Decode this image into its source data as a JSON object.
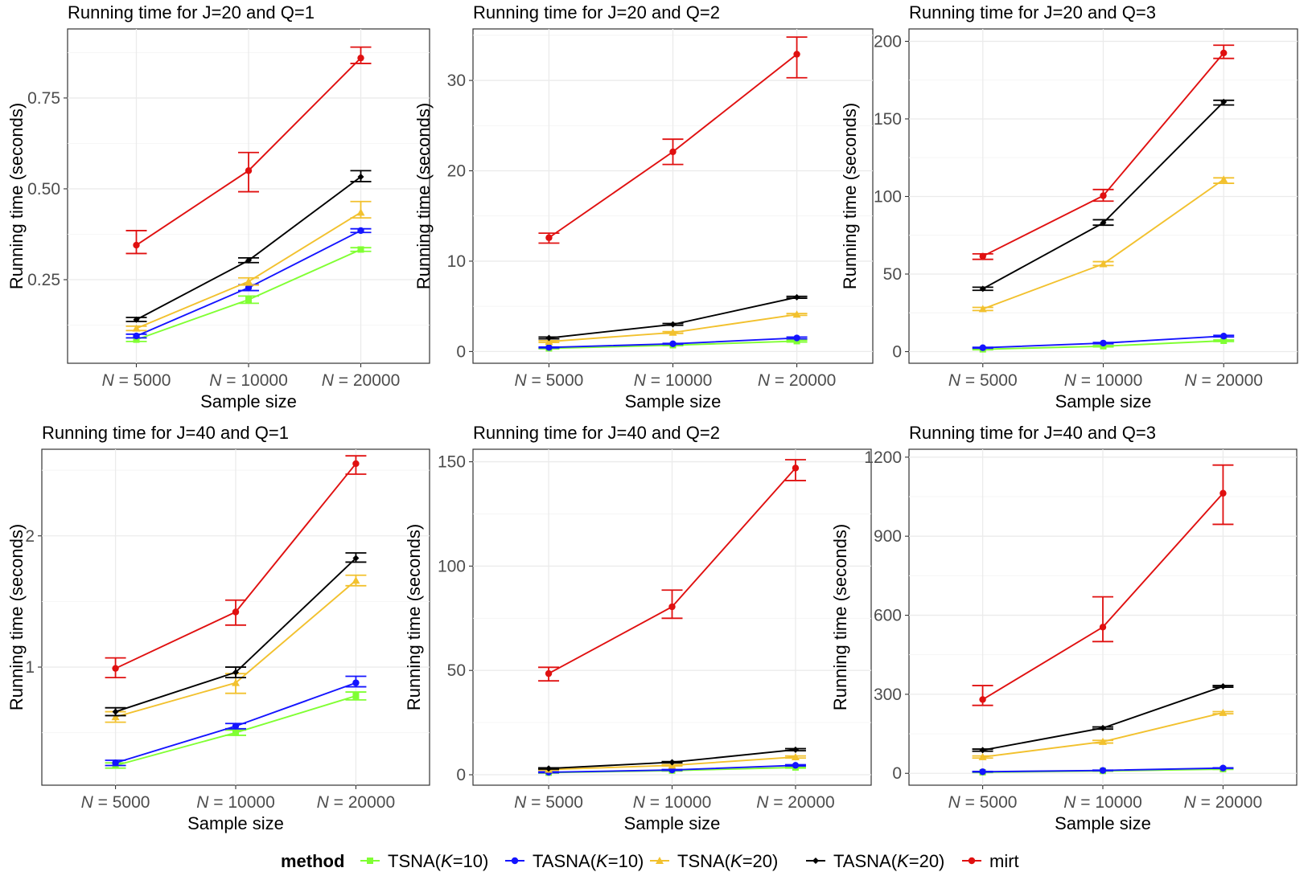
{
  "legend": {
    "title": "method",
    "items": [
      {
        "label": "TSNA(K=10)",
        "color": "#80ff33",
        "marker": "square"
      },
      {
        "label": "TASNA(K=10)",
        "color": "#1414ff",
        "marker": "circle"
      },
      {
        "label": "TSNA(K=20)",
        "color": "#f2c12e",
        "marker": "triangle"
      },
      {
        "label": "TASNA(K=20)",
        "color": "#000000",
        "marker": "diamond"
      },
      {
        "label": "mirt",
        "color": "#e01010",
        "marker": "circle"
      }
    ]
  },
  "chart_data": [
    {
      "type": "line",
      "title": "Running time for J=20 and Q=1",
      "xlabel": "Sample size",
      "ylabel": "Running time (seconds)",
      "categories": [
        "N = 5000",
        "N = 10000",
        "N = 20000"
      ],
      "ylim": [
        0.02,
        0.94
      ],
      "yticks": [
        0.25,
        0.5,
        0.75
      ],
      "ytick_labels": [
        "0.25",
        "0.50",
        "0.75"
      ],
      "series": [
        {
          "name": "TSNA(K=10)",
          "values": [
            0.085,
            0.195,
            0.333
          ],
          "lower": [
            0.08,
            0.185,
            0.328
          ],
          "upper": [
            0.09,
            0.205,
            0.338
          ]
        },
        {
          "name": "TASNA(K=10)",
          "values": [
            0.095,
            0.228,
            0.385
          ],
          "lower": [
            0.09,
            0.22,
            0.38
          ],
          "upper": [
            0.1,
            0.236,
            0.39
          ]
        },
        {
          "name": "TSNA(K=20)",
          "values": [
            0.116,
            0.245,
            0.435
          ],
          "lower": [
            0.11,
            0.235,
            0.42
          ],
          "upper": [
            0.122,
            0.255,
            0.465
          ]
        },
        {
          "name": "TASNA(K=20)",
          "values": [
            0.14,
            0.303,
            0.533
          ],
          "lower": [
            0.135,
            0.297,
            0.52
          ],
          "upper": [
            0.146,
            0.31,
            0.55
          ]
        },
        {
          "name": "mirt",
          "values": [
            0.345,
            0.55,
            0.86
          ],
          "lower": [
            0.322,
            0.492,
            0.845
          ],
          "upper": [
            0.385,
            0.6,
            0.89
          ]
        }
      ]
    },
    {
      "type": "line",
      "title": "Running time for J=20 and Q=2",
      "xlabel": "Sample size",
      "ylabel": "Running time (seconds)",
      "categories": [
        "N = 5000",
        "N = 10000",
        "N = 20000"
      ],
      "ylim": [
        -1.3,
        35.7
      ],
      "yticks": [
        0,
        10,
        20,
        30
      ],
      "ytick_labels": [
        "0",
        "10",
        "20",
        "30"
      ],
      "series": [
        {
          "name": "TSNA(K=10)",
          "values": [
            0.35,
            0.7,
            1.15
          ],
          "lower": [
            0.3,
            0.65,
            1.05
          ],
          "upper": [
            0.4,
            0.75,
            1.25
          ]
        },
        {
          "name": "TASNA(K=10)",
          "values": [
            0.45,
            0.85,
            1.5
          ],
          "lower": [
            0.4,
            0.8,
            1.4
          ],
          "upper": [
            0.5,
            0.9,
            1.6
          ]
        },
        {
          "name": "TSNA(K=20)",
          "values": [
            1.1,
            2.1,
            4.1
          ],
          "lower": [
            1.0,
            2.0,
            4.0
          ],
          "upper": [
            1.2,
            2.2,
            4.2
          ]
        },
        {
          "name": "TASNA(K=20)",
          "values": [
            1.5,
            3.0,
            6.0
          ],
          "lower": [
            1.4,
            2.9,
            5.9
          ],
          "upper": [
            1.6,
            3.1,
            6.1
          ]
        },
        {
          "name": "mirt",
          "values": [
            12.6,
            22.1,
            32.9
          ],
          "lower": [
            12.0,
            20.7,
            30.3
          ],
          "upper": [
            13.1,
            23.5,
            34.8
          ]
        }
      ]
    },
    {
      "type": "line",
      "title": "Running time for J=20 and Q=3",
      "xlabel": "Sample size",
      "ylabel": "Running time (seconds)",
      "categories": [
        "N = 5000",
        "N = 10000",
        "N = 20000"
      ],
      "ylim": [
        -7.5,
        208
      ],
      "yticks": [
        0,
        50,
        100,
        150,
        200
      ],
      "ytick_labels": [
        "0",
        "50",
        "100",
        "150",
        "200"
      ],
      "series": [
        {
          "name": "TSNA(K=10)",
          "values": [
            1.5,
            3.5,
            7.0
          ],
          "lower": [
            1.2,
            3.1,
            6.5
          ],
          "upper": [
            1.8,
            3.9,
            7.5
          ]
        },
        {
          "name": "TASNA(K=10)",
          "values": [
            2.5,
            5.5,
            10.0
          ],
          "lower": [
            2.2,
            5.1,
            9.5
          ],
          "upper": [
            2.8,
            5.9,
            10.5
          ]
        },
        {
          "name": "TSNA(K=20)",
          "values": [
            27.5,
            56.5,
            111.0
          ],
          "lower": [
            26.5,
            55.5,
            108.5
          ],
          "upper": [
            28.5,
            58.0,
            112.0
          ]
        },
        {
          "name": "TASNA(K=20)",
          "values": [
            40.5,
            83.0,
            161.0
          ],
          "lower": [
            39.5,
            81.5,
            159.0
          ],
          "upper": [
            41.5,
            85.0,
            162.0
          ]
        },
        {
          "name": "mirt",
          "values": [
            61.5,
            100.5,
            192.5
          ],
          "lower": [
            59.5,
            97.0,
            189.0
          ],
          "upper": [
            63.0,
            104.5,
            197.5
          ]
        }
      ]
    },
    {
      "type": "line",
      "title": "Running time for J=40 and Q=1",
      "xlabel": "Sample size",
      "ylabel": "Running time (seconds)",
      "categories": [
        "N = 5000",
        "N = 10000",
        "N = 20000"
      ],
      "ylim": [
        0.1,
        2.66
      ],
      "yticks": [
        1,
        2
      ],
      "ytick_labels": [
        "1",
        "2"
      ],
      "series": [
        {
          "name": "TSNA(K=10)",
          "values": [
            0.25,
            0.5,
            0.78
          ],
          "lower": [
            0.23,
            0.48,
            0.75
          ],
          "upper": [
            0.27,
            0.52,
            0.81
          ]
        },
        {
          "name": "TASNA(K=10)",
          "values": [
            0.27,
            0.55,
            0.88
          ],
          "lower": [
            0.25,
            0.53,
            0.85
          ],
          "upper": [
            0.29,
            0.57,
            0.93
          ]
        },
        {
          "name": "TSNA(K=20)",
          "values": [
            0.62,
            0.88,
            1.66
          ],
          "lower": [
            0.58,
            0.8,
            1.62
          ],
          "upper": [
            0.66,
            0.95,
            1.7
          ]
        },
        {
          "name": "TASNA(K=20)",
          "values": [
            0.66,
            0.96,
            1.83
          ],
          "lower": [
            0.63,
            0.92,
            1.8
          ],
          "upper": [
            0.69,
            1.0,
            1.87
          ]
        },
        {
          "name": "mirt",
          "values": [
            0.99,
            1.42,
            2.55
          ],
          "lower": [
            0.92,
            1.32,
            2.47
          ],
          "upper": [
            1.07,
            1.51,
            2.61
          ]
        }
      ]
    },
    {
      "type": "line",
      "title": "Running time for J=40 and Q=2",
      "xlabel": "Sample size",
      "ylabel": "Running time (seconds)",
      "categories": [
        "N = 5000",
        "N = 10000",
        "N = 20000"
      ],
      "ylim": [
        -5,
        156
      ],
      "yticks": [
        0,
        50,
        100,
        150
      ],
      "ytick_labels": [
        "0",
        "50",
        "100",
        "150"
      ],
      "series": [
        {
          "name": "TSNA(K=10)",
          "values": [
            1.0,
            2.0,
            3.5
          ],
          "lower": [
            0.8,
            1.8,
            3.2
          ],
          "upper": [
            1.2,
            2.2,
            3.8
          ]
        },
        {
          "name": "TASNA(K=10)",
          "values": [
            1.2,
            2.3,
            4.5
          ],
          "lower": [
            1.0,
            2.1,
            4.2
          ],
          "upper": [
            1.4,
            2.5,
            4.8
          ]
        },
        {
          "name": "TSNA(K=20)",
          "values": [
            2.5,
            4.5,
            8.5
          ],
          "lower": [
            2.2,
            4.2,
            8.0
          ],
          "upper": [
            2.8,
            4.8,
            9.0
          ]
        },
        {
          "name": "TASNA(K=20)",
          "values": [
            3.0,
            6.0,
            12.0
          ],
          "lower": [
            2.7,
            5.7,
            11.5
          ],
          "upper": [
            3.3,
            6.3,
            12.5
          ]
        },
        {
          "name": "mirt",
          "values": [
            48.5,
            80.5,
            147.0
          ],
          "lower": [
            45.0,
            75.0,
            141.0
          ],
          "upper": [
            51.5,
            88.5,
            151.0
          ]
        }
      ]
    },
    {
      "type": "line",
      "title": "Running time for J=40 and Q=3",
      "xlabel": "Sample size",
      "ylabel": "Running time (seconds)",
      "categories": [
        "N = 5000",
        "N = 10000",
        "N = 20000"
      ],
      "ylim": [
        -45,
        1230
      ],
      "yticks": [
        0,
        300,
        600,
        900,
        1200
      ],
      "ytick_labels": [
        "0",
        "300",
        "600",
        "900",
        "1200"
      ],
      "series": [
        {
          "name": "TSNA(K=10)",
          "values": [
            4,
            9,
            16
          ],
          "lower": [
            3,
            8,
            15
          ],
          "upper": [
            5,
            10,
            17
          ]
        },
        {
          "name": "TASNA(K=10)",
          "values": [
            6,
            11,
            20
          ],
          "lower": [
            5,
            10,
            19
          ],
          "upper": [
            7,
            12,
            21
          ]
        },
        {
          "name": "TSNA(K=20)",
          "values": [
            62,
            120,
            230
          ],
          "lower": [
            58,
            115,
            226
          ],
          "upper": [
            66,
            125,
            234
          ]
        },
        {
          "name": "TASNA(K=20)",
          "values": [
            88,
            172,
            330
          ],
          "lower": [
            84,
            168,
            327
          ],
          "upper": [
            92,
            176,
            333
          ]
        },
        {
          "name": "mirt",
          "values": [
            280,
            555,
            1063
          ],
          "lower": [
            258,
            500,
            945
          ],
          "upper": [
            333,
            670,
            1170
          ]
        }
      ]
    }
  ]
}
